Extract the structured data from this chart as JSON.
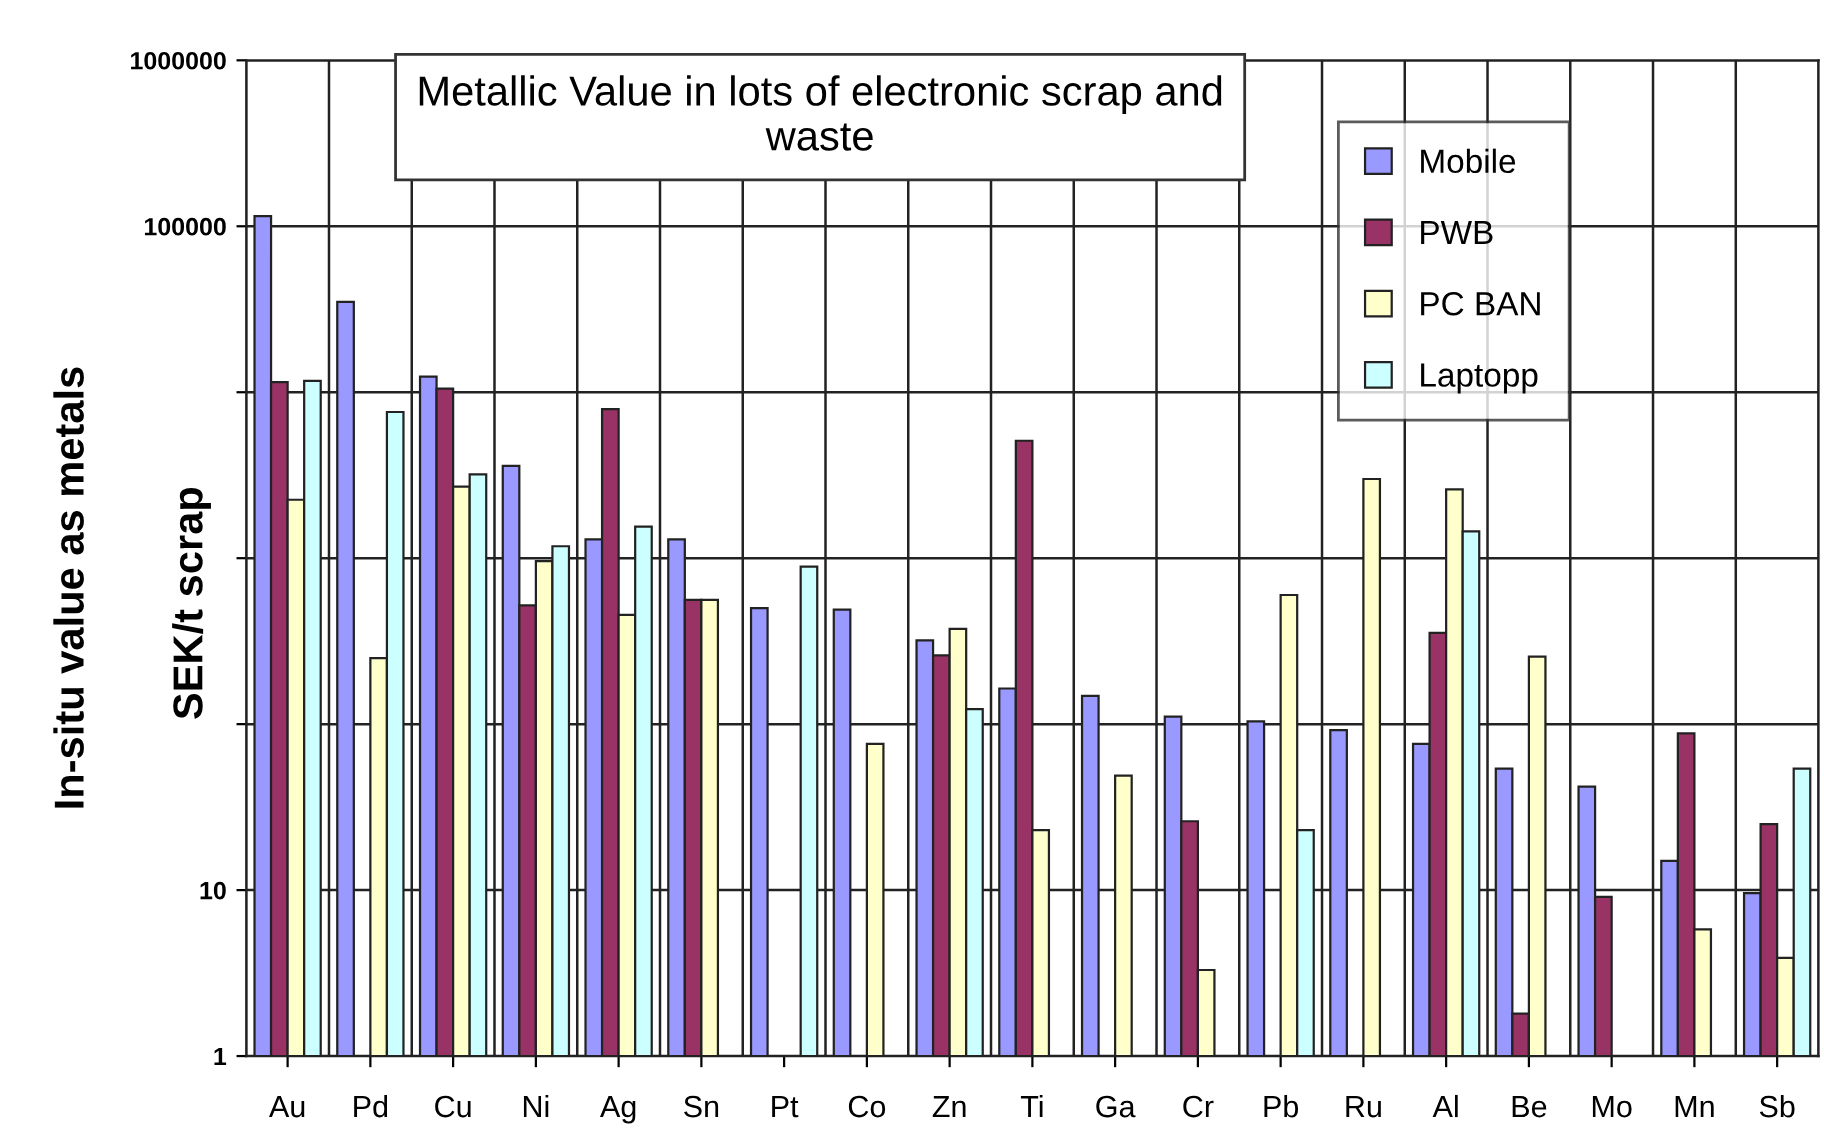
{
  "chart_data": {
    "type": "bar",
    "title": "Metallic Value in lots of electronic scrap and waste",
    "ylabel": "In-situ value as metals",
    "annotations": [
      "SEK/t scrap"
    ],
    "categories": [
      "Au",
      "Pd",
      "Cu",
      "Ni",
      "Ag",
      "Sn",
      "Pt",
      "Co",
      "Zn",
      "Ti",
      "Ga",
      "Cr",
      "Pb",
      "Ru",
      "Al",
      "Be",
      "Mo",
      "Mn",
      "Sb"
    ],
    "series": [
      {
        "name": "Mobile",
        "color": "#9999ff",
        "values": [
          115000,
          35000,
          12400,
          3600,
          1300,
          1300,
          500,
          490,
          320,
          164,
          148,
          111,
          104,
          92,
          76,
          54,
          42,
          15,
          9.6
        ]
      },
      {
        "name": "PWB",
        "color": "#993366",
        "values": [
          11500,
          null,
          10500,
          520,
          7900,
          560,
          null,
          null,
          260,
          5100,
          null,
          26,
          null,
          null,
          355,
          1.8,
          9.1,
          88,
          25
        ]
      },
      {
        "name": "PC BAN",
        "color": "#ffffcc",
        "values": [
          2250,
          250,
          2700,
          960,
          455,
          560,
          null,
          76,
          375,
          23,
          49,
          3.3,
          600,
          3000,
          2600,
          255,
          null,
          5.8,
          3.9
        ]
      },
      {
        "name": "Laptopp",
        "color": "#ccffff",
        "values": [
          11700,
          7600,
          3200,
          1180,
          1550,
          null,
          890,
          null,
          123,
          null,
          null,
          null,
          23,
          null,
          1450,
          null,
          null,
          null,
          54
        ]
      }
    ],
    "log": "y",
    "ylim": [
      1,
      1000000
    ],
    "yticks": [
      1,
      10,
      {
        "value": 100,
        "label": null
      },
      {
        "value": 1000,
        "label": null
      },
      {
        "value": 10000,
        "label": null
      },
      100000,
      1000000
    ],
    "grid": true,
    "legend": "top right"
  }
}
